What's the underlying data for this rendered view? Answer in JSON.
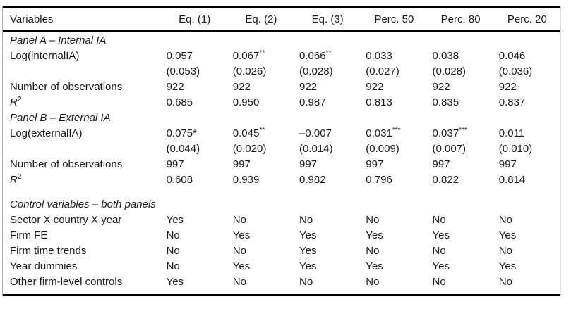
{
  "colors": {
    "text": "#1a1a1a",
    "rule": "#000000",
    "page_bg": "#ffffff",
    "left_edge_line": "#ababab",
    "right_edge_line": "#dcdcdc"
  },
  "table": {
    "header": [
      "Variables",
      "Eq. (1)",
      "Eq. (2)",
      "Eq. (3)",
      "Perc. 50",
      "Perc. 80",
      "Perc. 20"
    ],
    "rows": [
      {
        "type": "section",
        "label": {
          "text": "Panel A – Internal IA"
        }
      },
      {
        "type": "data",
        "label": {
          "text": "Log(internalIA)"
        },
        "cells": [
          {
            "text": "0.057"
          },
          {
            "text": "0.067",
            "sup": "**"
          },
          {
            "text": "0.066",
            "sup": "**"
          },
          {
            "text": "0.033"
          },
          {
            "text": "0.038"
          },
          {
            "text": "0.046"
          }
        ]
      },
      {
        "type": "data",
        "label": {
          "text": ""
        },
        "cells": [
          {
            "text": "(0.053)"
          },
          {
            "text": "(0.026)"
          },
          {
            "text": "(0.028)"
          },
          {
            "text": "(0.027)"
          },
          {
            "text": "(0.028)"
          },
          {
            "text": "(0.036)"
          }
        ]
      },
      {
        "type": "data",
        "label": {
          "text": "Number of observations"
        },
        "cells": [
          {
            "text": "922"
          },
          {
            "text": "922"
          },
          {
            "text": "922"
          },
          {
            "text": "922"
          },
          {
            "text": "922"
          },
          {
            "text": "922"
          }
        ]
      },
      {
        "type": "data",
        "label": {
          "text": "R",
          "sup": "2",
          "italic": true
        },
        "cells": [
          {
            "text": "0.685"
          },
          {
            "text": "0.950"
          },
          {
            "text": "0.987"
          },
          {
            "text": "0.813"
          },
          {
            "text": "0.835"
          },
          {
            "text": "0.837"
          }
        ]
      },
      {
        "type": "section",
        "label": {
          "text": "Panel B – External IA"
        }
      },
      {
        "type": "data",
        "label": {
          "text": "Log(externalIA)"
        },
        "cells": [
          {
            "text": "0.075*"
          },
          {
            "text": "0.045",
            "sup": "**"
          },
          {
            "text": "–0.007"
          },
          {
            "text": "0.031",
            "sup": "***"
          },
          {
            "text": "0.037",
            "sup": "***"
          },
          {
            "text": "0.011"
          }
        ]
      },
      {
        "type": "data",
        "label": {
          "text": ""
        },
        "cells": [
          {
            "text": "(0.044)"
          },
          {
            "text": "(0.020)"
          },
          {
            "text": "(0.014)"
          },
          {
            "text": "(0.009)"
          },
          {
            "text": "(0.007)"
          },
          {
            "text": "(0.010)"
          }
        ]
      },
      {
        "type": "data",
        "label": {
          "text": "Number of observations"
        },
        "cells": [
          {
            "text": "997"
          },
          {
            "text": "997"
          },
          {
            "text": "997"
          },
          {
            "text": "997"
          },
          {
            "text": "997"
          },
          {
            "text": "997"
          }
        ]
      },
      {
        "type": "data",
        "label": {
          "text": "R",
          "sup": "2",
          "italic": true
        },
        "cells": [
          {
            "text": "0.608"
          },
          {
            "text": "0.939"
          },
          {
            "text": "0.982"
          },
          {
            "text": "0.796"
          },
          {
            "text": "0.822"
          },
          {
            "text": "0.814"
          }
        ]
      },
      {
        "type": "section",
        "spaced": true,
        "label": {
          "text": "Control variables – both panels"
        }
      },
      {
        "type": "data",
        "label": {
          "text": "Sector X country X year"
        },
        "cells": [
          {
            "text": "Yes"
          },
          {
            "text": "No"
          },
          {
            "text": "No"
          },
          {
            "text": "No"
          },
          {
            "text": "No"
          },
          {
            "text": "No"
          }
        ]
      },
      {
        "type": "data",
        "label": {
          "text": "Firm FE"
        },
        "cells": [
          {
            "text": "No"
          },
          {
            "text": "Yes"
          },
          {
            "text": "Yes"
          },
          {
            "text": "Yes"
          },
          {
            "text": "Yes"
          },
          {
            "text": "Yes"
          }
        ]
      },
      {
        "type": "data",
        "label": {
          "text": "Firm time trends"
        },
        "cells": [
          {
            "text": "No"
          },
          {
            "text": "No"
          },
          {
            "text": "Yes"
          },
          {
            "text": "No"
          },
          {
            "text": "No"
          },
          {
            "text": "No"
          }
        ]
      },
      {
        "type": "data",
        "label": {
          "text": "Year dummies"
        },
        "cells": [
          {
            "text": "No"
          },
          {
            "text": "Yes"
          },
          {
            "text": "Yes"
          },
          {
            "text": "Yes"
          },
          {
            "text": "Yes"
          },
          {
            "text": "Yes"
          }
        ]
      },
      {
        "type": "data",
        "label": {
          "text": "Other firm-level controls"
        },
        "cells": [
          {
            "text": "Yes"
          },
          {
            "text": "No"
          },
          {
            "text": "No"
          },
          {
            "text": "No"
          },
          {
            "text": "No"
          },
          {
            "text": "No"
          }
        ]
      }
    ]
  }
}
